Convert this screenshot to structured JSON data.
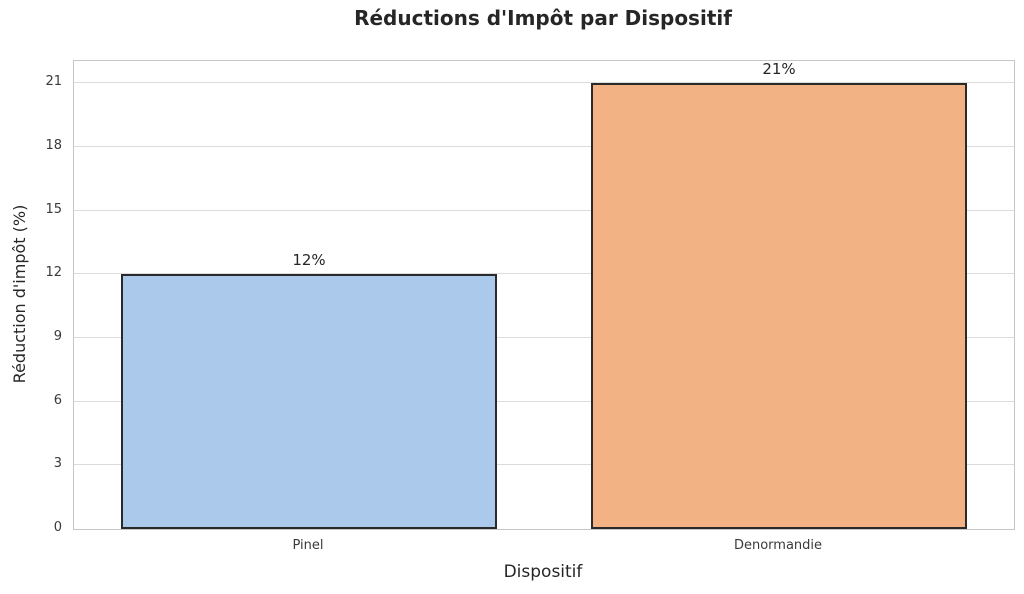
{
  "chart_data": {
    "type": "bar",
    "title": "Réductions d'Impôt par Dispositif",
    "xlabel": "Dispositif",
    "ylabel": "Réduction d'impôt (%)",
    "categories": [
      "Pinel",
      "Denormandie"
    ],
    "values": [
      12,
      21
    ],
    "value_labels": [
      "12%",
      "21%"
    ],
    "yticks": [
      0,
      3,
      6,
      9,
      12,
      15,
      18,
      21
    ],
    "ylim": [
      0,
      22.05
    ],
    "grid": "horizontal",
    "legend": "none",
    "colors": {
      "bar_fills": [
        "#ABCAEB",
        "#F2B283"
      ],
      "bar_edge": "#2a2a2a",
      "grid_line": "#dcdcdc",
      "spine": "#c6c6c6",
      "text": "#262626",
      "background": "#ffffff"
    }
  }
}
